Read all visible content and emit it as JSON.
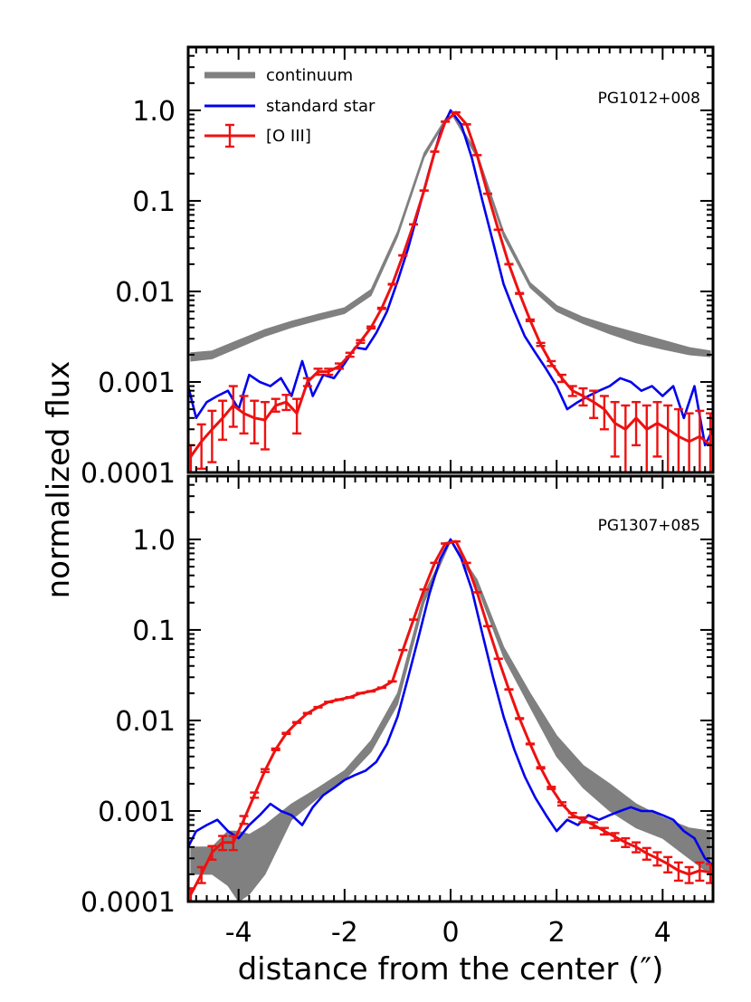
{
  "chart_data": {
    "type": "line",
    "xlabel": "distance from the center (″)",
    "ylabel": "normalized flux",
    "xlim": [
      -4.95,
      4.95
    ],
    "ylim": [
      0.0001,
      5
    ],
    "yscale": "log",
    "x_ticks": [
      -4,
      -2,
      0,
      2,
      4
    ],
    "x_tick_labels": [
      "-4",
      "-2",
      "0",
      "2",
      "4"
    ],
    "y_ticks": [
      0.0001,
      0.001,
      0.01,
      0.1,
      1
    ],
    "y_tick_labels": [
      "0.0001",
      "0.001",
      "0.01",
      "0.1",
      "1.0"
    ],
    "legend": {
      "position": "top-left",
      "entries": [
        {
          "label": "continuum",
          "color": "#808080"
        },
        {
          "label": "standard star",
          "color": "#0000ee"
        },
        {
          "label": "[O III]",
          "color": "#ee1111"
        }
      ]
    },
    "panels": [
      {
        "label": "PG1012+008",
        "series": [
          {
            "name": "continuum",
            "color": "#808080",
            "style": "band",
            "x": [
              -4.9,
              -4.5,
              -4.0,
              -3.5,
              -3.0,
              -2.5,
              -2.0,
              -1.5,
              -1.0,
              -0.5,
              0.0,
              0.5,
              1.0,
              1.5,
              2.0,
              2.5,
              3.0,
              3.5,
              4.0,
              4.5,
              4.9
            ],
            "low": [
              0.0017,
              0.0018,
              0.0024,
              0.0032,
              0.004,
              0.0048,
              0.0057,
              0.009,
              0.04,
              0.3,
              0.95,
              0.3,
              0.04,
              0.011,
              0.006,
              0.0044,
              0.0034,
              0.0027,
              0.0023,
              0.002,
              0.0019
            ],
            "high": [
              0.0021,
              0.0022,
              0.0029,
              0.0038,
              0.0047,
              0.0056,
              0.0066,
              0.0105,
              0.046,
              0.34,
              1.0,
              0.34,
              0.046,
              0.0125,
              0.007,
              0.0052,
              0.0042,
              0.0035,
              0.0029,
              0.0024,
              0.0022
            ]
          },
          {
            "name": "standard star",
            "color": "#0000ee",
            "x": [
              -4.95,
              -4.8,
              -4.6,
              -4.4,
              -4.2,
              -4.0,
              -3.8,
              -3.6,
              -3.4,
              -3.2,
              -3.0,
              -2.8,
              -2.6,
              -2.4,
              -2.2,
              -2.0,
              -1.8,
              -1.6,
              -1.4,
              -1.2,
              -1.0,
              -0.8,
              -0.6,
              -0.4,
              -0.2,
              0.0,
              0.2,
              0.4,
              0.6,
              0.8,
              1.0,
              1.2,
              1.4,
              1.6,
              1.8,
              2.0,
              2.2,
              2.4,
              2.6,
              2.8,
              3.0,
              3.2,
              3.4,
              3.6,
              3.8,
              4.0,
              4.2,
              4.4,
              4.6,
              4.8,
              4.95
            ],
            "y": [
              0.0009,
              0.0004,
              0.0006,
              0.0007,
              0.0008,
              0.0005,
              0.0012,
              0.001,
              0.0009,
              0.0011,
              0.0007,
              0.0017,
              0.0007,
              0.0012,
              0.0011,
              0.0016,
              0.0024,
              0.0023,
              0.0035,
              0.006,
              0.013,
              0.03,
              0.08,
              0.22,
              0.55,
              1.0,
              0.7,
              0.3,
              0.1,
              0.035,
              0.012,
              0.006,
              0.0032,
              0.0021,
              0.0014,
              0.0009,
              0.0005,
              0.0006,
              0.0007,
              0.0008,
              0.0009,
              0.0011,
              0.001,
              0.0008,
              0.0009,
              0.0007,
              0.0009,
              0.0004,
              0.0009,
              0.0002,
              0.0003
            ]
          },
          {
            "name": "[O III]",
            "color": "#ee1111",
            "errorbars": true,
            "x": [
              -4.9,
              -4.7,
              -4.5,
              -4.3,
              -4.1,
              -3.9,
              -3.7,
              -3.5,
              -3.3,
              -3.1,
              -2.9,
              -2.7,
              -2.5,
              -2.3,
              -2.1,
              -1.9,
              -1.7,
              -1.5,
              -1.3,
              -1.1,
              -0.9,
              -0.7,
              -0.5,
              -0.3,
              -0.1,
              0.1,
              0.3,
              0.5,
              0.7,
              0.9,
              1.1,
              1.3,
              1.5,
              1.7,
              1.9,
              2.1,
              2.3,
              2.5,
              2.7,
              2.9,
              3.1,
              3.3,
              3.5,
              3.7,
              3.9,
              4.1,
              4.3,
              4.5,
              4.7,
              4.9
            ],
            "y": [
              0.00015,
              0.00022,
              0.0003,
              0.0004,
              0.00055,
              0.00045,
              0.0004,
              0.00038,
              0.00055,
              0.0006,
              0.00045,
              0.001,
              0.0013,
              0.0013,
              0.0015,
              0.002,
              0.0028,
              0.004,
              0.0065,
              0.012,
              0.025,
              0.055,
              0.13,
              0.35,
              0.75,
              0.95,
              0.7,
              0.32,
              0.12,
              0.048,
              0.02,
              0.0095,
              0.0048,
              0.0026,
              0.0016,
              0.0011,
              0.0008,
              0.0007,
              0.0006,
              0.0005,
              0.00035,
              0.0003,
              0.0004,
              0.0003,
              0.00035,
              0.0003,
              0.00025,
              0.00022,
              0.00025,
              0.0002
            ],
            "err_low": [
              0.0001,
              0.00011,
              0.00013,
              0.00023,
              0.00032,
              0.00027,
              0.00021,
              0.00018,
              0.00047,
              0.00049,
              0.00027,
              0.0009,
              0.0012,
              0.0012,
              0.0014,
              0.0019,
              0.0027,
              0.0039,
              0.0064,
              0.0119,
              0.0249,
              0.0549,
              0.1299,
              0.3499,
              0.7499,
              0.9499,
              0.6999,
              0.3199,
              0.1199,
              0.0479,
              0.0199,
              0.0094,
              0.0047,
              0.0025,
              0.0015,
              0.001,
              0.0007,
              0.00055,
              0.0004,
              0.0003,
              0.00015,
              0.0001,
              0.0002,
              0.0001,
              0.00015,
              0.0001,
              5e-05,
              4e-05,
              8e-05,
              3e-05
            ],
            "err_high": [
              0.0002,
              0.00034,
              0.00048,
              0.00062,
              0.0009,
              0.0007,
              0.00062,
              0.0006,
              0.00065,
              0.00072,
              0.00065,
              0.0011,
              0.0014,
              0.0014,
              0.0016,
              0.0021,
              0.0029,
              0.0041,
              0.0066,
              0.0121,
              0.0251,
              0.0551,
              0.1301,
              0.3501,
              0.7501,
              0.9501,
              0.7001,
              0.3201,
              0.1201,
              0.0481,
              0.0201,
              0.0096,
              0.0049,
              0.0027,
              0.0017,
              0.0012,
              0.0009,
              0.00085,
              0.0008,
              0.0007,
              0.0006,
              0.00055,
              0.0006,
              0.00055,
              0.0006,
              0.00055,
              0.0005,
              0.00045,
              0.00048,
              0.00045
            ]
          }
        ]
      },
      {
        "label": "PG1307+085",
        "series": [
          {
            "name": "continuum",
            "color": "#808080",
            "style": "band",
            "x": [
              -4.9,
              -4.5,
              -4.2,
              -4.0,
              -3.8,
              -3.5,
              -3.0,
              -2.5,
              -2.0,
              -1.5,
              -1.0,
              -0.5,
              0.0,
              0.5,
              1.0,
              1.5,
              2.0,
              2.5,
              3.0,
              3.5,
              4.0,
              4.5,
              4.9
            ],
            "low": [
              0.0002,
              0.0002,
              0.00015,
              0.0001,
              0.00012,
              0.0002,
              0.0008,
              0.0014,
              0.0022,
              0.0045,
              0.015,
              0.2,
              0.95,
              0.3,
              0.05,
              0.014,
              0.004,
              0.0018,
              0.001,
              0.00065,
              0.0005,
              0.0003,
              0.0002
            ],
            "high": [
              0.0004,
              0.0004,
              0.0006,
              0.0006,
              0.00055,
              0.0007,
              0.0012,
              0.0018,
              0.0028,
              0.006,
              0.02,
              0.25,
              1.0,
              0.36,
              0.065,
              0.02,
              0.0068,
              0.0032,
              0.002,
              0.0012,
              0.00085,
              0.00065,
              0.0006
            ]
          },
          {
            "name": "standard star",
            "color": "#0000ee",
            "x": [
              -4.95,
              -4.8,
              -4.6,
              -4.4,
              -4.2,
              -4.0,
              -3.8,
              -3.6,
              -3.4,
              -3.2,
              -3.0,
              -2.8,
              -2.6,
              -2.4,
              -2.2,
              -2.0,
              -1.8,
              -1.6,
              -1.4,
              -1.2,
              -1.0,
              -0.8,
              -0.6,
              -0.4,
              -0.2,
              0.0,
              0.2,
              0.4,
              0.6,
              0.8,
              1.0,
              1.2,
              1.4,
              1.6,
              1.8,
              2.0,
              2.2,
              2.4,
              2.6,
              2.8,
              3.0,
              3.2,
              3.4,
              3.6,
              3.8,
              4.0,
              4.2,
              4.4,
              4.6,
              4.8,
              4.95
            ],
            "y": [
              0.0004,
              0.0006,
              0.0007,
              0.0008,
              0.0006,
              0.0005,
              0.0007,
              0.0009,
              0.0012,
              0.001,
              0.0009,
              0.0007,
              0.0011,
              0.0015,
              0.0018,
              0.0022,
              0.0025,
              0.0028,
              0.0035,
              0.0055,
              0.011,
              0.03,
              0.085,
              0.25,
              0.6,
              1.0,
              0.62,
              0.28,
              0.09,
              0.03,
              0.011,
              0.0048,
              0.0024,
              0.0014,
              0.0009,
              0.0006,
              0.0008,
              0.0007,
              0.0009,
              0.0008,
              0.0009,
              0.001,
              0.0011,
              0.001,
              0.001,
              0.0009,
              0.0008,
              0.0006,
              0.0005,
              0.0003,
              0.00025
            ]
          },
          {
            "name": "[O III]",
            "color": "#ee1111",
            "errorbars": true,
            "x": [
              -4.9,
              -4.7,
              -4.5,
              -4.3,
              -4.1,
              -3.9,
              -3.7,
              -3.5,
              -3.3,
              -3.1,
              -2.9,
              -2.7,
              -2.5,
              -2.3,
              -2.1,
              -1.9,
              -1.7,
              -1.5,
              -1.3,
              -1.1,
              -0.9,
              -0.7,
              -0.5,
              -0.3,
              -0.1,
              0.1,
              0.3,
              0.5,
              0.7,
              0.9,
              1.1,
              1.3,
              1.5,
              1.7,
              1.9,
              2.1,
              2.3,
              2.5,
              2.7,
              2.9,
              3.1,
              3.3,
              3.5,
              3.7,
              3.9,
              4.1,
              4.3,
              4.5,
              4.7,
              4.9
            ],
            "y": [
              0.00012,
              0.0002,
              0.00035,
              0.00045,
              0.00045,
              0.0008,
              0.0015,
              0.0028,
              0.0048,
              0.0072,
              0.0095,
              0.012,
              0.014,
              0.016,
              0.017,
              0.018,
              0.02,
              0.021,
              0.023,
              0.027,
              0.06,
              0.13,
              0.28,
              0.55,
              0.9,
              0.95,
              0.55,
              0.26,
              0.11,
              0.048,
              0.022,
              0.0105,
              0.0055,
              0.003,
              0.0018,
              0.0012,
              0.0009,
              0.0008,
              0.0007,
              0.0006,
              0.00052,
              0.00045,
              0.0004,
              0.00034,
              0.0003,
              0.00026,
              0.00022,
              0.0002,
              0.00022,
              0.00021
            ],
            "err_low": [
              0.0001,
              0.00016,
              0.00029,
              0.00037,
              0.00037,
              0.00072,
              0.0014,
              0.0027,
              0.0047,
              0.0071,
              0.0094,
              0.0119,
              0.0139,
              0.0159,
              0.0169,
              0.0179,
              0.0199,
              0.0209,
              0.0229,
              0.0269,
              0.0599,
              0.1299,
              0.2799,
              0.5499,
              0.8999,
              0.9499,
              0.5499,
              0.2599,
              0.1099,
              0.0479,
              0.0219,
              0.0104,
              0.00545,
              0.00295,
              0.00175,
              0.00115,
              0.00085,
              0.00075,
              0.00065,
              0.00055,
              0.00047,
              0.0004,
              0.00035,
              0.00029,
              0.00025,
              0.00021,
              0.00017,
              0.00016,
              0.00017,
              0.00016
            ],
            "err_high": [
              0.00014,
              0.00024,
              0.00041,
              0.00053,
              0.00053,
              0.00088,
              0.0016,
              0.0029,
              0.0049,
              0.0073,
              0.0096,
              0.0121,
              0.0141,
              0.0161,
              0.0171,
              0.0181,
              0.0201,
              0.0211,
              0.0231,
              0.0271,
              0.0601,
              0.1301,
              0.2801,
              0.5501,
              0.9001,
              0.9501,
              0.5501,
              0.2601,
              0.1101,
              0.0481,
              0.0221,
              0.0106,
              0.00555,
              0.00305,
              0.00185,
              0.00125,
              0.00095,
              0.00085,
              0.00075,
              0.00065,
              0.00057,
              0.0005,
              0.00045,
              0.00039,
              0.00035,
              0.00031,
              0.00027,
              0.00024,
              0.00027,
              0.00026
            ]
          }
        ]
      }
    ]
  }
}
